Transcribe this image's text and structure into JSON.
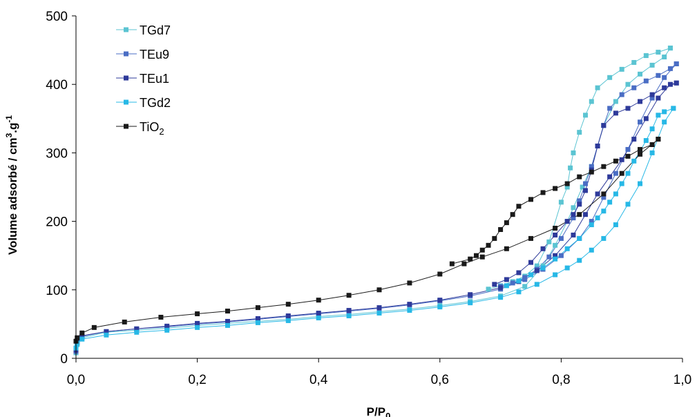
{
  "chart_data": {
    "type": "line",
    "xlabel": "P/P",
    "xlabel_sub": "0",
    "ylabel": "Volume adsorbé / cm",
    "ylabel_sup": "3",
    "ylabel_mid": ".g",
    "ylabel_sup2": "-1",
    "xlim": [
      0,
      1
    ],
    "ylim": [
      0,
      500
    ],
    "x_ticks": [
      "0,0",
      "0,2",
      "0,4",
      "0,6",
      "0,8",
      "1,0"
    ],
    "y_ticks": [
      "0",
      "100",
      "200",
      "300",
      "400",
      "500"
    ],
    "grid": false,
    "legend_position": "top-left",
    "series": [
      {
        "name": "TGd7",
        "color": "#5bc4d2",
        "adsorption": [
          [
            0,
            8
          ],
          [
            0.002,
            20
          ],
          [
            0.01,
            30
          ],
          [
            0.05,
            38
          ],
          [
            0.1,
            41
          ],
          [
            0.15,
            44
          ],
          [
            0.2,
            48
          ],
          [
            0.25,
            51
          ],
          [
            0.3,
            54
          ],
          [
            0.35,
            57
          ],
          [
            0.4,
            61
          ],
          [
            0.45,
            64
          ],
          [
            0.5,
            68
          ],
          [
            0.55,
            72
          ],
          [
            0.6,
            77
          ],
          [
            0.65,
            83
          ],
          [
            0.7,
            91
          ],
          [
            0.74,
            105
          ],
          [
            0.77,
            135
          ],
          [
            0.79,
            165
          ],
          [
            0.81,
            200
          ],
          [
            0.82,
            220
          ],
          [
            0.835,
            250
          ],
          [
            0.85,
            280
          ],
          [
            0.87,
            340
          ],
          [
            0.89,
            375
          ],
          [
            0.91,
            400
          ],
          [
            0.93,
            415
          ],
          [
            0.95,
            428
          ],
          [
            0.97,
            440
          ],
          [
            0.98,
            453
          ]
        ],
        "desorption": [
          [
            0.98,
            453
          ],
          [
            0.96,
            447
          ],
          [
            0.94,
            442
          ],
          [
            0.92,
            432
          ],
          [
            0.9,
            422
          ],
          [
            0.88,
            410
          ],
          [
            0.86,
            395
          ],
          [
            0.85,
            375
          ],
          [
            0.84,
            355
          ],
          [
            0.83,
            330
          ],
          [
            0.82,
            300
          ],
          [
            0.815,
            278
          ],
          [
            0.81,
            250
          ],
          [
            0.8,
            228
          ],
          [
            0.78,
            170
          ],
          [
            0.76,
            135
          ],
          [
            0.74,
            120
          ],
          [
            0.72,
            112
          ],
          [
            0.7,
            106
          ],
          [
            0.68,
            101
          ]
        ]
      },
      {
        "name": "TEu9",
        "color": "#4a6dc4",
        "adsorption": [
          [
            0,
            10
          ],
          [
            0.002,
            22
          ],
          [
            0.01,
            32
          ],
          [
            0.05,
            39
          ],
          [
            0.1,
            43
          ],
          [
            0.15,
            46
          ],
          [
            0.2,
            50
          ],
          [
            0.25,
            53
          ],
          [
            0.3,
            57
          ],
          [
            0.35,
            61
          ],
          [
            0.4,
            65
          ],
          [
            0.45,
            69
          ],
          [
            0.5,
            73
          ],
          [
            0.55,
            78
          ],
          [
            0.6,
            84
          ],
          [
            0.65,
            91
          ],
          [
            0.7,
            101
          ],
          [
            0.74,
            115
          ],
          [
            0.77,
            130
          ],
          [
            0.8,
            150
          ],
          [
            0.83,
            175
          ],
          [
            0.85,
            200
          ],
          [
            0.87,
            235
          ],
          [
            0.89,
            270
          ],
          [
            0.91,
            305
          ],
          [
            0.93,
            345
          ],
          [
            0.95,
            380
          ],
          [
            0.97,
            410
          ],
          [
            0.99,
            430
          ]
        ],
        "desorption": [
          [
            0.99,
            430
          ],
          [
            0.98,
            423
          ],
          [
            0.96,
            413
          ],
          [
            0.94,
            405
          ],
          [
            0.92,
            395
          ],
          [
            0.9,
            385
          ],
          [
            0.88,
            365
          ],
          [
            0.87,
            340
          ],
          [
            0.86,
            310
          ],
          [
            0.85,
            280
          ],
          [
            0.84,
            255
          ],
          [
            0.83,
            230
          ],
          [
            0.82,
            205
          ],
          [
            0.8,
            175
          ],
          [
            0.78,
            148
          ],
          [
            0.76,
            130
          ],
          [
            0.74,
            118
          ],
          [
            0.72,
            110
          ],
          [
            0.7,
            105
          ]
        ]
      },
      {
        "name": "TEu1",
        "color": "#2e3a9a",
        "adsorption": [
          [
            0,
            12
          ],
          [
            0.002,
            24
          ],
          [
            0.01,
            33
          ],
          [
            0.05,
            39
          ],
          [
            0.1,
            43
          ],
          [
            0.15,
            47
          ],
          [
            0.2,
            51
          ],
          [
            0.25,
            54
          ],
          [
            0.3,
            58
          ],
          [
            0.35,
            62
          ],
          [
            0.4,
            66
          ],
          [
            0.45,
            70
          ],
          [
            0.5,
            74
          ],
          [
            0.55,
            79
          ],
          [
            0.6,
            85
          ],
          [
            0.65,
            93
          ],
          [
            0.7,
            103
          ],
          [
            0.73,
            112
          ],
          [
            0.76,
            128
          ],
          [
            0.79,
            150
          ],
          [
            0.82,
            180
          ],
          [
            0.84,
            210
          ],
          [
            0.86,
            240
          ],
          [
            0.88,
            265
          ],
          [
            0.9,
            290
          ],
          [
            0.92,
            320
          ],
          [
            0.94,
            350
          ],
          [
            0.96,
            380
          ],
          [
            0.98,
            400
          ],
          [
            0.99,
            402
          ]
        ],
        "desorption": [
          [
            0.99,
            402
          ],
          [
            0.97,
            395
          ],
          [
            0.95,
            385
          ],
          [
            0.93,
            375
          ],
          [
            0.91,
            365
          ],
          [
            0.89,
            358
          ],
          [
            0.87,
            340
          ],
          [
            0.86,
            310
          ],
          [
            0.85,
            275
          ],
          [
            0.84,
            245
          ],
          [
            0.83,
            225
          ],
          [
            0.82,
            210
          ],
          [
            0.81,
            200
          ],
          [
            0.79,
            180
          ],
          [
            0.77,
            160
          ],
          [
            0.75,
            140
          ],
          [
            0.73,
            125
          ],
          [
            0.71,
            115
          ],
          [
            0.69,
            108
          ]
        ]
      },
      {
        "name": "TGd2",
        "color": "#27b8e6",
        "adsorption": [
          [
            0,
            15
          ],
          [
            0.002,
            22
          ],
          [
            0.01,
            28
          ],
          [
            0.05,
            34
          ],
          [
            0.1,
            38
          ],
          [
            0.15,
            41
          ],
          [
            0.2,
            45
          ],
          [
            0.25,
            48
          ],
          [
            0.3,
            52
          ],
          [
            0.35,
            55
          ],
          [
            0.4,
            59
          ],
          [
            0.45,
            62
          ],
          [
            0.5,
            66
          ],
          [
            0.55,
            70
          ],
          [
            0.6,
            75
          ],
          [
            0.65,
            81
          ],
          [
            0.7,
            89
          ],
          [
            0.73,
            97
          ],
          [
            0.76,
            108
          ],
          [
            0.79,
            122
          ],
          [
            0.81,
            132
          ],
          [
            0.83,
            143
          ],
          [
            0.85,
            158
          ],
          [
            0.87,
            175
          ],
          [
            0.89,
            195
          ],
          [
            0.91,
            225
          ],
          [
            0.93,
            255
          ],
          [
            0.95,
            300
          ],
          [
            0.97,
            345
          ],
          [
            0.985,
            365
          ]
        ],
        "desorption": [
          [
            0.985,
            365
          ],
          [
            0.97,
            360
          ],
          [
            0.96,
            355
          ],
          [
            0.95,
            335
          ],
          [
            0.94,
            318
          ],
          [
            0.93,
            302
          ],
          [
            0.92,
            288
          ],
          [
            0.91,
            270
          ],
          [
            0.9,
            255
          ],
          [
            0.89,
            240
          ],
          [
            0.88,
            228
          ],
          [
            0.87,
            215
          ],
          [
            0.86,
            205
          ],
          [
            0.85,
            195
          ],
          [
            0.83,
            175
          ],
          [
            0.81,
            160
          ],
          [
            0.79,
            145
          ],
          [
            0.77,
            132
          ],
          [
            0.75,
            122
          ],
          [
            0.73,
            113
          ],
          [
            0.71,
            106
          ]
        ]
      },
      {
        "name": "TiO",
        "name_sub": "2",
        "color": "#1a1a1a",
        "adsorption": [
          [
            0,
            25
          ],
          [
            0.002,
            30
          ],
          [
            0.01,
            37
          ],
          [
            0.03,
            45
          ],
          [
            0.08,
            53
          ],
          [
            0.14,
            60
          ],
          [
            0.2,
            65
          ],
          [
            0.25,
            69
          ],
          [
            0.3,
            74
          ],
          [
            0.35,
            79
          ],
          [
            0.4,
            85
          ],
          [
            0.45,
            92
          ],
          [
            0.5,
            100
          ],
          [
            0.55,
            110
          ],
          [
            0.6,
            123
          ],
          [
            0.64,
            138
          ],
          [
            0.67,
            148
          ],
          [
            0.71,
            160
          ],
          [
            0.75,
            175
          ],
          [
            0.79,
            190
          ],
          [
            0.83,
            210
          ],
          [
            0.87,
            240
          ],
          [
            0.9,
            270
          ],
          [
            0.93,
            298
          ],
          [
            0.96,
            320
          ]
        ],
        "desorption": [
          [
            0.96,
            320
          ],
          [
            0.95,
            312
          ],
          [
            0.93,
            305
          ],
          [
            0.91,
            295
          ],
          [
            0.89,
            288
          ],
          [
            0.87,
            280
          ],
          [
            0.85,
            272
          ],
          [
            0.83,
            265
          ],
          [
            0.81,
            255
          ],
          [
            0.79,
            248
          ],
          [
            0.77,
            242
          ],
          [
            0.75,
            232
          ],
          [
            0.73,
            222
          ],
          [
            0.72,
            210
          ],
          [
            0.71,
            198
          ],
          [
            0.7,
            188
          ],
          [
            0.69,
            175
          ],
          [
            0.68,
            165
          ],
          [
            0.67,
            158
          ],
          [
            0.66,
            150
          ],
          [
            0.65,
            145
          ],
          [
            0.62,
            138
          ]
        ]
      }
    ]
  }
}
